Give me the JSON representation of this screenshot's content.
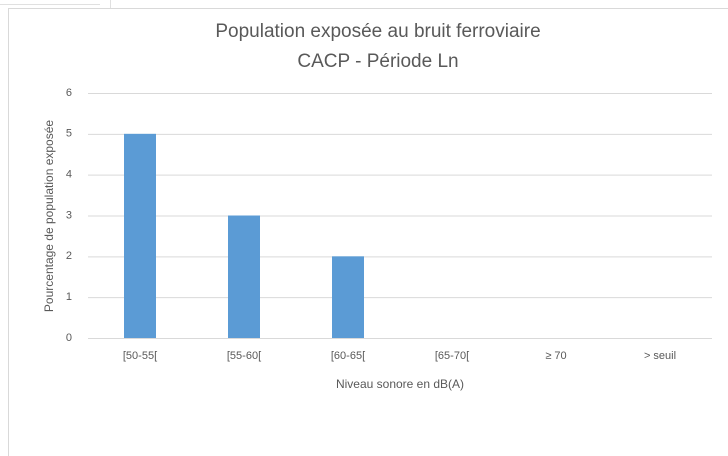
{
  "chart_data": {
    "type": "bar",
    "title": "Population exposée au bruit ferroviaire",
    "subtitle": "CACP - Période Ln",
    "x_label": "Niveau sonore en dB(A)",
    "y_label": "Pourcentage de population exposée",
    "categories": [
      "[50-55[",
      "[55-60[",
      "[60-65[",
      "[65-70[",
      "≥ 70",
      "> seuil"
    ],
    "values": [
      5,
      3,
      2,
      0,
      0,
      0
    ],
    "color": "#5b9bd5",
    "ylim": [
      0,
      6
    ],
    "yticks": [
      0,
      1,
      2,
      3,
      4,
      5,
      6
    ],
    "grid": true
  }
}
